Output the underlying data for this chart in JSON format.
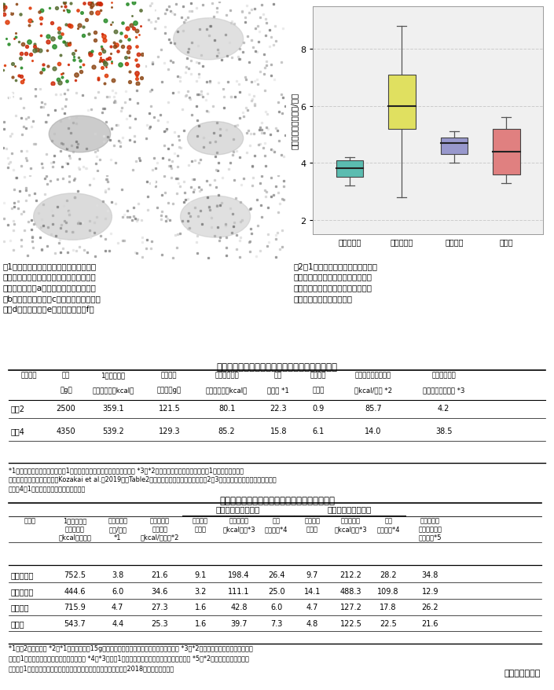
{
  "fig_width": 7.05,
  "fig_height": 8.79,
  "dpi": 100,
  "bg_color": "#ffffff",
  "boxplot": {
    "ylabel": "食べた廃果の数（個/分）",
    "categories": [
      "アライグマ",
      "ハクビシン",
      "アナグマ",
      "タヌキ"
    ],
    "colors": [
      "#5bbcb0",
      "#e0e060",
      "#9898cc",
      "#e08080"
    ],
    "medians": [
      3.8,
      6.0,
      4.7,
      4.4
    ],
    "q1": [
      3.5,
      5.2,
      4.3,
      3.6
    ],
    "q3": [
      4.1,
      7.1,
      4.9,
      5.2
    ],
    "whisker_low": [
      3.2,
      2.8,
      4.0,
      3.3
    ],
    "whisker_high": [
      4.2,
      8.8,
      5.1,
      5.6
    ],
    "ylim": [
      1.5,
      9.5
    ],
    "yticks": [
      2,
      4,
      6,
      8
    ],
    "grid_color": "#cccccc"
  },
  "table1": {
    "title": "表１　飼育ハクビシンが柿果実１個を食べる速さ",
    "col_line1": [
      "個体番号",
      "体重",
      "1日に必要な",
      "試験中の",
      "試験中の獲得",
      "割合",
      "採食時間",
      "エネルギー獲得効率",
      "必要量獲得に"
    ],
    "col_line2": [
      "",
      "（g）",
      "エネルギー（kcal）",
      "採食量（g）",
      "エネルギー（kcal）",
      "（％） *1",
      "（分）",
      "（kcal/分） *2",
      "かかる時間（分） *3"
    ],
    "rows": [
      [
        "オス2",
        "2500",
        "359.1",
        "121.5",
        "80.1",
        "22.3",
        "0.9",
        "85.7",
        "4.2"
      ],
      [
        "オス4",
        "4350",
        "539.2",
        "129.3",
        "85.2",
        "15.8",
        "6.1",
        "14.0",
        "38.5"
      ]
    ],
    "footnotes": [
      "*1：試験中の獲得エネルギーが1日に必要なエネルギーに占める割合。 *3：*2と同じ速さで食べ続けた場合に1日に必要なエネル",
      "ギーを獲得するまでの時間。Kozakai et al.（2019）のTable2より、最も早く食べた個体（オス2の3日目）及び、最も遅く食べた個体",
      "（オス4の1日目）のデータを抜粹し改変。"
    ]
  },
  "table2": {
    "title": "表２　中型哺乳類がイチゴの廃果を食べる速さ",
    "rows": [
      [
        "アライグマ",
        "752.5",
        "3.8",
        "21.6",
        "9.1",
        "198.4",
        "26.4",
        "9.7",
        "212.2",
        "28.2",
        "34.8"
      ],
      [
        "ハクビシン",
        "444.6",
        "6.0",
        "34.6",
        "3.2",
        "111.1",
        "25.0",
        "14.1",
        "488.3",
        "109.8",
        "12.9"
      ],
      [
        "アナグマ",
        "715.9",
        "4.7",
        "27.3",
        "1.6",
        "42.8",
        "6.0",
        "4.7",
        "127.2",
        "17.8",
        "26.2"
      ],
      [
        "タヌキ",
        "543.7",
        "4.4",
        "25.3",
        "1.6",
        "39.7",
        "7.3",
        "4.8",
        "122.5",
        "22.5",
        "21.6"
      ]
    ],
    "footnotes": [
      "*1：図2の中央値。 *2：*1をイチゴ果実15gに含まれる代謝エネルギー量を用いて換算。 *3：*2の値を用いた場合に、廃果場に",
      "おける1回の滲在で獲得できるエネルギー。 *4：*3の値が1日に必要なエネルギー量に占める割合。 *5：*2と同じ速さで食べ続け",
      "た場合に1日に必要なエネルギーを獲得するまでの時間。小坂井ら（2018）の表３を改変。"
    ]
  },
  "author": "（小坂井千夏）",
  "fig1_caption_lines": [
    "図1　イチゴ園の廃果場及び廃果の採食が",
    "確認された哺乳類（白黒は夜間撮影写真）",
    "廃果場の様子（a）、外来種：アライグマ",
    "（b）、ハクビシン（c）、在来種：アナグ",
    "マ（d）、タヌキ（e）、ノウサギ（f）"
  ],
  "fig2_caption_lines": [
    "図2　1分間当たりに食べたイチゴ廃",
    "果の数（筱は第３四分位、中央値、",
    "第１四分位の範囲、上下の線は最大",
    "及び最小値の範囲を示す）"
  ]
}
